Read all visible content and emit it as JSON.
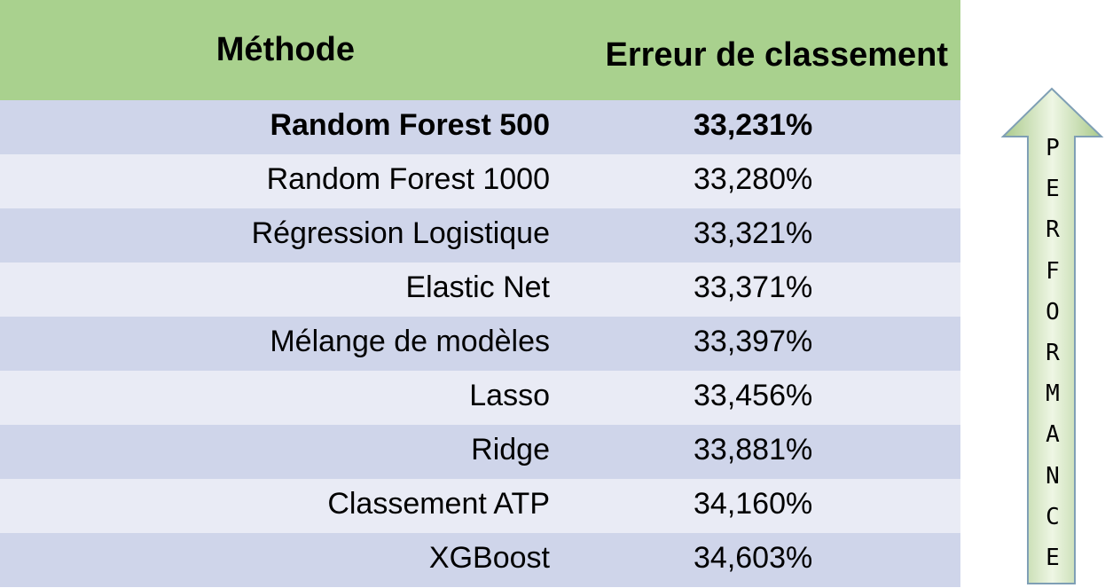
{
  "chart_data": {
    "type": "table",
    "columns": [
      "Méthode",
      "Erreur de classement"
    ],
    "rows": [
      {
        "method": "Random Forest 500",
        "error": "33,231%",
        "best": true
      },
      {
        "method": "Random Forest 1000",
        "error": "33,280%"
      },
      {
        "method": "Régression Logistique",
        "error": "33,321%"
      },
      {
        "method": "Elastic Net",
        "error": "33,371%"
      },
      {
        "method": "Mélange de modèles",
        "error": "33,397%"
      },
      {
        "method": "Lasso",
        "error": "33,456%"
      },
      {
        "method": "Ridge",
        "error": "33,881%"
      },
      {
        "method": "Classement ATP",
        "error": "34,160%"
      },
      {
        "method": "XGBoost",
        "error": "34,603%"
      }
    ],
    "arrow_label": "PERFORMANCE",
    "arrow_direction": "up"
  },
  "colors": {
    "header_bg": "#a9d18e",
    "row_odd_bg": "#cfd5ea",
    "row_even_bg": "#e9ebf5",
    "arrow_fill_light": "#eef6e4",
    "arrow_fill_dark": "#a9c98a",
    "arrow_stroke": "#7f9fb5"
  }
}
